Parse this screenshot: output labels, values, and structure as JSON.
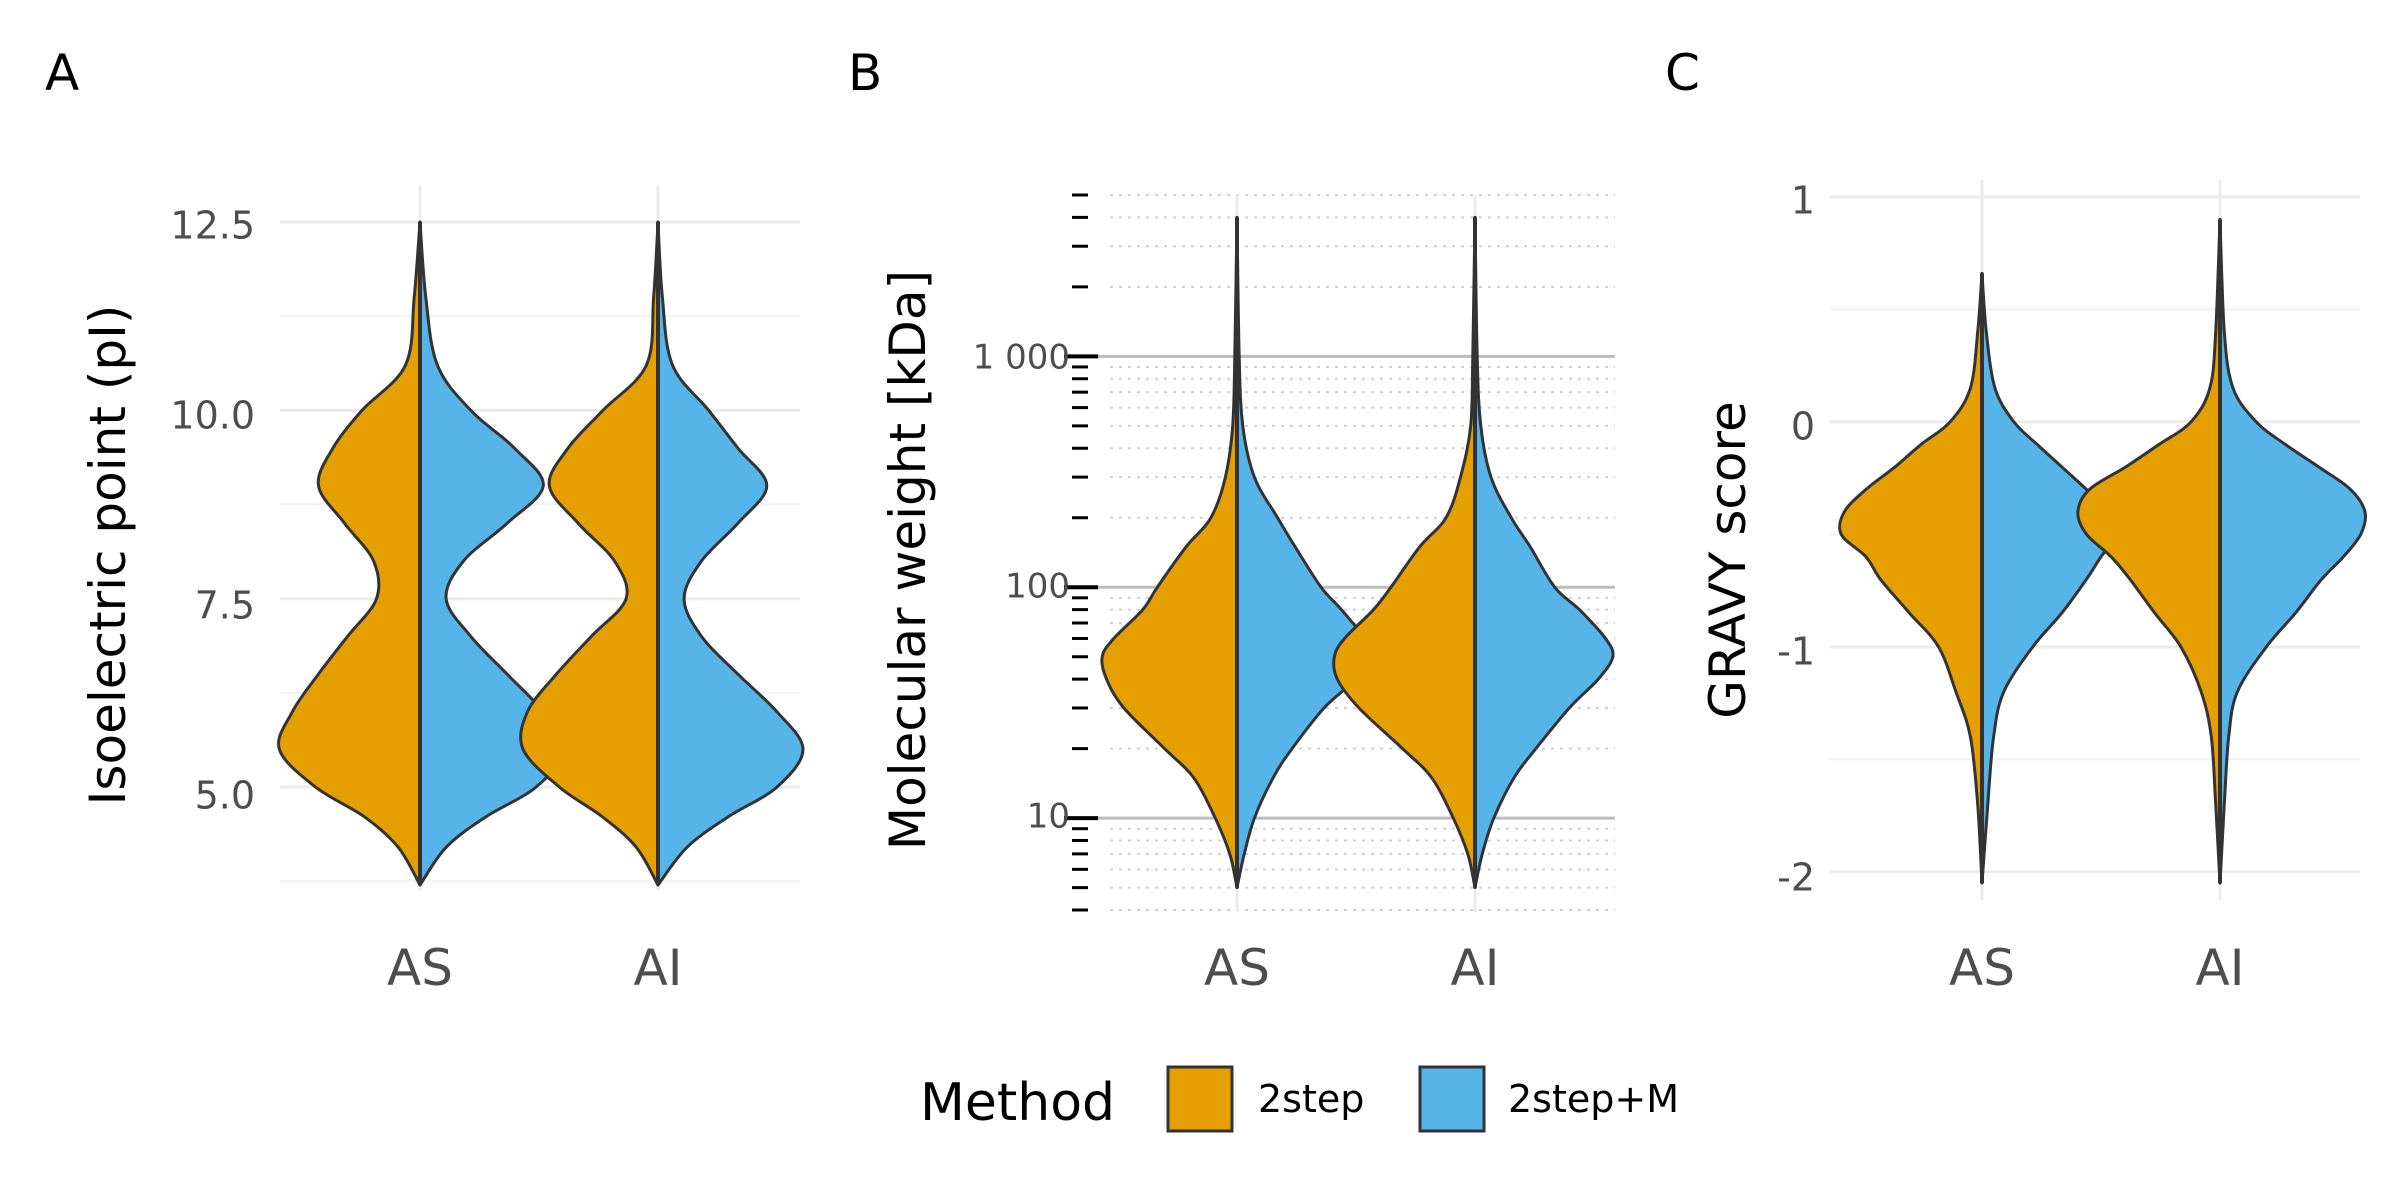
{
  "colors": {
    "2step": "#E69F00",
    "2step+M": "#56B4E9",
    "outline": "#333333",
    "grid_major": "#ebebeb",
    "grid_minor": "#f2f2f2"
  },
  "legend": {
    "title": "Method",
    "items": [
      {
        "label": "2step",
        "color": "#E69F00"
      },
      {
        "label": "2step+M",
        "color": "#56B4E9"
      }
    ]
  },
  "chart_data": [
    {
      "panel": "A",
      "type": "violin",
      "categories": [
        "AS",
        "AI"
      ],
      "ylabel": "Isoelectric point (pI)",
      "ylim": [
        3.7,
        12.5
      ],
      "yticks": [
        "5.0",
        "7.5",
        "10.0",
        "12.5"
      ],
      "series": [
        {
          "name": "2step",
          "profiles": {
            "AS": [
              [
                3.7,
                0.0
              ],
              [
                4.2,
                0.15
              ],
              [
                4.6,
                0.38
              ],
              [
                5.0,
                0.72
              ],
              [
                5.5,
                0.97
              ],
              [
                6.0,
                0.88
              ],
              [
                6.5,
                0.7
              ],
              [
                7.0,
                0.5
              ],
              [
                7.5,
                0.3
              ],
              [
                8.0,
                0.32
              ],
              [
                8.5,
                0.52
              ],
              [
                9.0,
                0.7
              ],
              [
                9.5,
                0.6
              ],
              [
                10.0,
                0.4
              ],
              [
                10.6,
                0.1
              ],
              [
                11.5,
                0.04
              ],
              [
                12.5,
                0.0
              ]
            ],
            "AI": [
              [
                3.7,
                0.0
              ],
              [
                4.2,
                0.15
              ],
              [
                4.6,
                0.38
              ],
              [
                5.0,
                0.68
              ],
              [
                5.5,
                0.93
              ],
              [
                6.0,
                0.9
              ],
              [
                6.5,
                0.7
              ],
              [
                7.0,
                0.46
              ],
              [
                7.5,
                0.22
              ],
              [
                8.0,
                0.3
              ],
              [
                8.5,
                0.55
              ],
              [
                9.0,
                0.75
              ],
              [
                9.5,
                0.62
              ],
              [
                10.0,
                0.38
              ],
              [
                10.6,
                0.08
              ],
              [
                11.5,
                0.03
              ],
              [
                12.5,
                0.0
              ]
            ]
          }
        },
        {
          "name": "2step+M",
          "profiles": {
            "AS": [
              [
                3.7,
                0.0
              ],
              [
                4.2,
                0.18
              ],
              [
                4.6,
                0.45
              ],
              [
                5.0,
                0.8
              ],
              [
                5.5,
                1.0
              ],
              [
                6.0,
                0.85
              ],
              [
                6.5,
                0.6
              ],
              [
                7.0,
                0.35
              ],
              [
                7.5,
                0.18
              ],
              [
                8.0,
                0.3
              ],
              [
                8.5,
                0.6
              ],
              [
                9.0,
                0.85
              ],
              [
                9.5,
                0.65
              ],
              [
                10.0,
                0.35
              ],
              [
                10.6,
                0.12
              ],
              [
                11.5,
                0.04
              ],
              [
                12.5,
                0.0
              ]
            ],
            "AI": [
              [
                3.7,
                0.0
              ],
              [
                4.2,
                0.2
              ],
              [
                4.6,
                0.48
              ],
              [
                5.0,
                0.82
              ],
              [
                5.5,
                1.0
              ],
              [
                6.0,
                0.82
              ],
              [
                6.5,
                0.55
              ],
              [
                7.0,
                0.3
              ],
              [
                7.5,
                0.18
              ],
              [
                8.0,
                0.3
              ],
              [
                8.5,
                0.55
              ],
              [
                9.0,
                0.75
              ],
              [
                9.5,
                0.55
              ],
              [
                10.0,
                0.35
              ],
              [
                10.6,
                0.1
              ],
              [
                11.5,
                0.03
              ],
              [
                12.5,
                0.0
              ]
            ]
          }
        }
      ]
    },
    {
      "panel": "B",
      "type": "violin",
      "categories": [
        "AS",
        "AI"
      ],
      "ylabel": "Molecular weight [kDa]",
      "ylim": [
        4,
        5000
      ],
      "yscale": "log",
      "yticks": [
        "10",
        "100",
        "1 000"
      ],
      "series": [
        {
          "name": "2step",
          "profiles": {
            "AS": [
              [
                5,
                0.0
              ],
              [
                7,
                0.05
              ],
              [
                10,
                0.15
              ],
              [
                15,
                0.3
              ],
              [
                20,
                0.5
              ],
              [
                30,
                0.78
              ],
              [
                40,
                0.9
              ],
              [
                50,
                0.93
              ],
              [
                60,
                0.85
              ],
              [
                80,
                0.65
              ],
              [
                100,
                0.55
              ],
              [
                150,
                0.35
              ],
              [
                200,
                0.18
              ],
              [
                300,
                0.08
              ],
              [
                500,
                0.03
              ],
              [
                1000,
                0.015
              ],
              [
                4000,
                0.0
              ]
            ],
            "AI": [
              [
                5,
                0.0
              ],
              [
                7,
                0.05
              ],
              [
                10,
                0.15
              ],
              [
                15,
                0.3
              ],
              [
                20,
                0.5
              ],
              [
                30,
                0.8
              ],
              [
                40,
                0.95
              ],
              [
                50,
                0.97
              ],
              [
                60,
                0.9
              ],
              [
                80,
                0.7
              ],
              [
                100,
                0.58
              ],
              [
                150,
                0.38
              ],
              [
                200,
                0.2
              ],
              [
                300,
                0.1
              ],
              [
                500,
                0.03
              ],
              [
                1000,
                0.015
              ],
              [
                4000,
                0.0
              ]
            ]
          }
        },
        {
          "name": "2step+M",
          "profiles": {
            "AS": [
              [
                5,
                0.0
              ],
              [
                7,
                0.05
              ],
              [
                10,
                0.12
              ],
              [
                15,
                0.25
              ],
              [
                20,
                0.38
              ],
              [
                30,
                0.6
              ],
              [
                40,
                0.82
              ],
              [
                50,
                0.92
              ],
              [
                60,
                0.88
              ],
              [
                80,
                0.72
              ],
              [
                100,
                0.58
              ],
              [
                150,
                0.4
              ],
              [
                200,
                0.28
              ],
              [
                300,
                0.12
              ],
              [
                500,
                0.04
              ],
              [
                1000,
                0.015
              ],
              [
                4000,
                0.0
              ]
            ],
            "AI": [
              [
                5,
                0.0
              ],
              [
                7,
                0.05
              ],
              [
                10,
                0.13
              ],
              [
                15,
                0.27
              ],
              [
                20,
                0.42
              ],
              [
                30,
                0.65
              ],
              [
                40,
                0.85
              ],
              [
                50,
                0.95
              ],
              [
                60,
                0.9
              ],
              [
                80,
                0.72
              ],
              [
                100,
                0.55
              ],
              [
                150,
                0.38
              ],
              [
                200,
                0.25
              ],
              [
                300,
                0.11
              ],
              [
                500,
                0.04
              ],
              [
                1000,
                0.015
              ],
              [
                4000,
                0.0
              ]
            ]
          }
        }
      ]
    },
    {
      "panel": "C",
      "type": "violin",
      "categories": [
        "AS",
        "AI"
      ],
      "ylabel": "GRAVY score",
      "ylim": [
        -2.05,
        1.0
      ],
      "yticks": [
        "-2",
        "-1",
        "0",
        "1"
      ],
      "series": [
        {
          "name": "2step",
          "profiles": {
            "AS": [
              [
                -2.05,
                0.0
              ],
              [
                -1.7,
                0.03
              ],
              [
                -1.4,
                0.08
              ],
              [
                -1.2,
                0.18
              ],
              [
                -1.0,
                0.3
              ],
              [
                -0.85,
                0.5
              ],
              [
                -0.7,
                0.7
              ],
              [
                -0.6,
                0.8
              ],
              [
                -0.5,
                0.97
              ],
              [
                -0.4,
                0.95
              ],
              [
                -0.3,
                0.8
              ],
              [
                -0.2,
                0.6
              ],
              [
                -0.1,
                0.42
              ],
              [
                0.0,
                0.22
              ],
              [
                0.15,
                0.08
              ],
              [
                0.4,
                0.03
              ],
              [
                0.66,
                0.0
              ]
            ],
            "AI": [
              [
                -2.05,
                0.0
              ],
              [
                -1.7,
                0.03
              ],
              [
                -1.4,
                0.06
              ],
              [
                -1.2,
                0.13
              ],
              [
                -1.0,
                0.27
              ],
              [
                -0.85,
                0.45
              ],
              [
                -0.7,
                0.62
              ],
              [
                -0.6,
                0.75
              ],
              [
                -0.5,
                0.92
              ],
              [
                -0.4,
                0.98
              ],
              [
                -0.3,
                0.9
              ],
              [
                -0.2,
                0.65
              ],
              [
                -0.1,
                0.42
              ],
              [
                0.0,
                0.2
              ],
              [
                0.15,
                0.07
              ],
              [
                0.4,
                0.03
              ],
              [
                0.9,
                0.0
              ]
            ]
          }
        },
        {
          "name": "2step+M",
          "profiles": {
            "AS": [
              [
                -2.05,
                0.0
              ],
              [
                -1.7,
                0.04
              ],
              [
                -1.4,
                0.08
              ],
              [
                -1.2,
                0.15
              ],
              [
                -1.0,
                0.35
              ],
              [
                -0.85,
                0.55
              ],
              [
                -0.7,
                0.72
              ],
              [
                -0.6,
                0.82
              ],
              [
                -0.5,
                0.93
              ],
              [
                -0.4,
                0.88
              ],
              [
                -0.3,
                0.72
              ],
              [
                -0.2,
                0.55
              ],
              [
                -0.1,
                0.38
              ],
              [
                0.0,
                0.22
              ],
              [
                0.15,
                0.09
              ],
              [
                0.4,
                0.03
              ],
              [
                0.66,
                0.0
              ]
            ],
            "AI": [
              [
                -2.05,
                0.0
              ],
              [
                -1.7,
                0.03
              ],
              [
                -1.4,
                0.06
              ],
              [
                -1.2,
                0.12
              ],
              [
                -1.0,
                0.32
              ],
              [
                -0.85,
                0.52
              ],
              [
                -0.7,
                0.7
              ],
              [
                -0.6,
                0.85
              ],
              [
                -0.5,
                0.97
              ],
              [
                -0.4,
                1.0
              ],
              [
                -0.3,
                0.9
              ],
              [
                -0.2,
                0.68
              ],
              [
                -0.1,
                0.45
              ],
              [
                0.0,
                0.25
              ],
              [
                0.15,
                0.09
              ],
              [
                0.4,
                0.03
              ],
              [
                0.9,
                0.0
              ]
            ]
          }
        }
      ]
    }
  ]
}
